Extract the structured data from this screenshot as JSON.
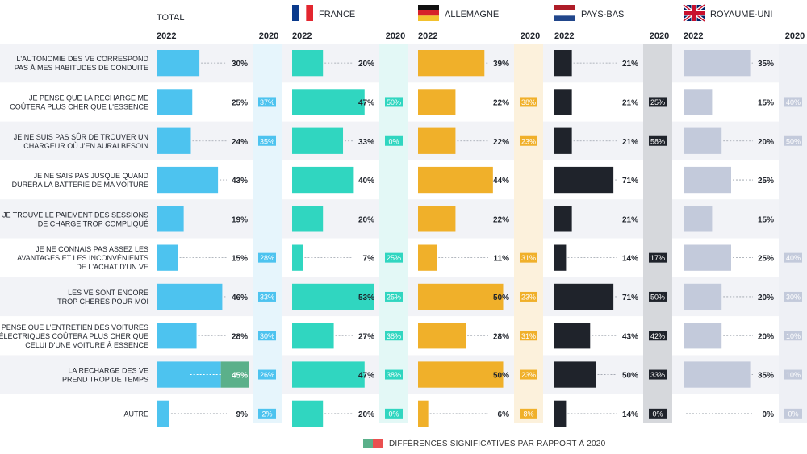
{
  "colors": {
    "total": "#4dc3ef",
    "france": "#30d6c0",
    "allemagne": "#f0b02a",
    "paysbas": "#1f232b",
    "royaumeuni": "#c3cadb",
    "total_col2020": "#e6f5fc",
    "france_col2020": "#e3f8f6",
    "allemagne_col2020": "#fcf1dc",
    "paysbas_col2020": "#d6d8dc",
    "royaumeuni_col2020": "#eef0f5",
    "significant_up": "#5bb08a",
    "significant_down": "#ea5050",
    "row_band": "#f2f3f7"
  },
  "legend": {
    "label": "DIFFÉRENCES SIGNIFICATIVES PAR RAPPORT À 2020"
  },
  "chart_data": {
    "type": "bar",
    "orientation": "horizontal",
    "categories": [
      "L'AUTONOMIE DES VE CORRESPOND\nPAS À MES HABITUDES DE CONDUITE",
      "JE PENSE QUE LA RECHARGE ME\nCOÛTERA PLUS CHER QUE L'ESSENCE",
      "JE NE SUIS PAS SÛR DE TROUVER UN\nCHARGEUR OÙ J'EN AURAI BESOIN",
      "JE NE SAIS PAS JUSQUE QUAND\nDURERA LA BATTERIE DE MA VOITURE",
      "JE TROUVE LE PAIEMENT DES SESSIONS\nDE CHARGE TROP COMPLIQUÉ",
      "JE NE CONNAIS PAS ASSEZ LES\nAVANTAGES ET LES INCONVÉNIENTS\nDE L'ACHAT D'UN VE",
      "LES VE SONT ENCORE\nTROP CHÈRES POUR MOI",
      "JE PENSE QUE L'ENTRETIEN DES VOITURES\nÉLECTRIQUES COÛTERA PLUS CHER QUE\nCELUI D'UNE VOITURE À ESSENCE",
      "LA RECHARGE DES VE\nPREND TROP DE TEMPS",
      "AUTRE"
    ],
    "year_labels": [
      "2022",
      "2020"
    ],
    "unit": "%",
    "xlim": [
      0,
      100
    ],
    "groups": [
      {
        "key": "total",
        "name": "TOTAL",
        "flag": null,
        "values_2022": [
          30,
          25,
          24,
          43,
          19,
          15,
          46,
          28,
          45,
          9
        ],
        "labels_2022": [
          "30%",
          "25%",
          "24%",
          "43%",
          "19%",
          "15%",
          "46%",
          "28%",
          "45%",
          "9%"
        ],
        "labels_2020": [
          "",
          "37%",
          "35%",
          "",
          "",
          "28%",
          "33%",
          "30%",
          "26%",
          "2%"
        ],
        "significant": [
          null,
          null,
          null,
          null,
          null,
          null,
          null,
          null,
          "up",
          null
        ]
      },
      {
        "key": "france",
        "name": "FRANCE",
        "flag": "fr-flag",
        "values_2022": [
          20,
          47,
          33,
          40,
          20,
          7,
          53,
          27,
          47,
          20
        ],
        "labels_2022": [
          "20%",
          "47%",
          "33%",
          "40%",
          "20%",
          "7%",
          "53%",
          "27%",
          "47%",
          "20%"
        ],
        "labels_2020": [
          "",
          "50%",
          "0%",
          "",
          "",
          "25%",
          "25%",
          "38%",
          "38%",
          "0%"
        ]
      },
      {
        "key": "allemagne",
        "name": "ALLEMAGNE",
        "flag": "de-flag",
        "values_2022": [
          39,
          22,
          22,
          44,
          22,
          11,
          50,
          28,
          50,
          6
        ],
        "labels_2022": [
          "39%",
          "22%",
          "22%",
          "44%",
          "22%",
          "11%",
          "50%",
          "28%",
          "50%",
          "6%"
        ],
        "labels_2020": [
          "",
          "38%",
          "23%",
          "",
          "",
          "31%",
          "23%",
          "31%",
          "23%",
          "8%"
        ]
      },
      {
        "key": "paysbas",
        "name": "PAYS-BAS",
        "flag": "nl-flag",
        "values_2022": [
          21,
          21,
          21,
          71,
          21,
          14,
          71,
          43,
          50,
          14
        ],
        "labels_2022": [
          "21%",
          "21%",
          "21%",
          "71%",
          "21%",
          "14%",
          "71%",
          "43%",
          "50%",
          "14%"
        ],
        "labels_2020": [
          "",
          "25%",
          "58%",
          "",
          "",
          "17%",
          "50%",
          "42%",
          "33%",
          "0%"
        ]
      },
      {
        "key": "royaumeuni",
        "name": "ROYAUME-UNI",
        "flag": "uk-flag",
        "values_2022": [
          35,
          15,
          20,
          25,
          15,
          25,
          20,
          20,
          35,
          0
        ],
        "labels_2022": [
          "35%",
          "15%",
          "20%",
          "25%",
          "15%",
          "25%",
          "20%",
          "20%",
          "35%",
          "0%"
        ],
        "labels_2020": [
          "",
          "40%",
          "50%",
          "",
          "",
          "40%",
          "30%",
          "10%",
          "10%",
          "0%"
        ]
      }
    ]
  }
}
